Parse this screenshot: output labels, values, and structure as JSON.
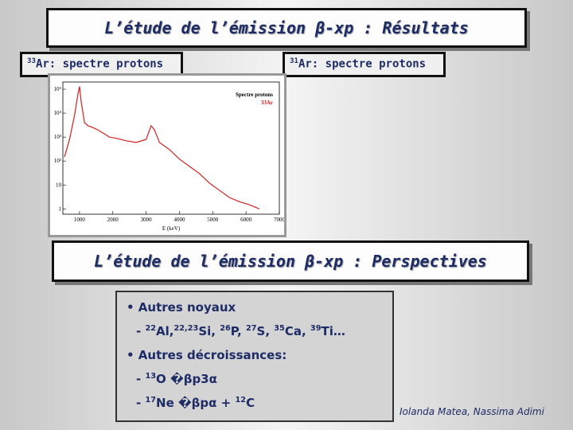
{
  "slide": {
    "title": "L’étude de l’émission β-xp : Résultats",
    "left_label": [
      "",
      "33",
      "Ar: spectre protons"
    ],
    "right_label": [
      "",
      "31",
      "Ar: spectre protons"
    ],
    "subtitle": "L’étude de l’émission β-xp : Perspectives",
    "list": [
      [
        "• Autres noyaux"
      ],
      [
        "- ",
        "22",
        "Al,",
        "22,23",
        "Si, ",
        "26",
        "P, ",
        "27",
        "S, ",
        "35",
        "Ca, ",
        "39",
        "Ti…"
      ],
      [
        "• Autres décroissances:"
      ],
      [
        "- ",
        "13",
        "O  �βp3α"
      ],
      [
        "- ",
        "17",
        "Ne �βpα + ",
        "12",
        "C"
      ]
    ],
    "author": "Iolanda Matea, Nassima Adimi"
  },
  "chart_data": {
    "type": "line",
    "legend": [
      "Spectre protons",
      "33Ar"
    ],
    "xlabel": "E (keV)",
    "log_y": true,
    "series": [
      {
        "name": "33Ar",
        "color": "#d42020",
        "x": [
          550,
          700,
          850,
          950,
          1000,
          1050,
          1150,
          1250,
          1400,
          1550,
          1700,
          1900,
          2100,
          2400,
          2700,
          3000,
          3150,
          3250,
          3400,
          3700,
          4000,
          4300,
          4600,
          4900,
          5200,
          5500,
          5800,
          6100,
          6400
        ],
        "values": [
          150,
          800,
          8000,
          60000,
          130000,
          30000,
          4000,
          3000,
          2500,
          2000,
          1500,
          1000,
          900,
          700,
          600,
          800,
          3000,
          2000,
          600,
          300,
          120,
          60,
          30,
          12,
          6,
          3,
          2,
          1.5,
          1
        ]
      }
    ],
    "xlim": [
      500,
      7000
    ],
    "xticks": [
      1000,
      2000,
      3000,
      4000,
      5000,
      6000,
      7000
    ],
    "ylim": [
      0.6,
      200000
    ],
    "yticks": [
      {
        "value": 1,
        "label": "1"
      },
      {
        "value": 10,
        "label": "10"
      },
      {
        "value": 100,
        "label": "10²"
      },
      {
        "value": 1000,
        "label": "10³"
      },
      {
        "value": 10000,
        "label": "10⁴"
      },
      {
        "value": 100000,
        "label": "10⁵"
      }
    ]
  }
}
